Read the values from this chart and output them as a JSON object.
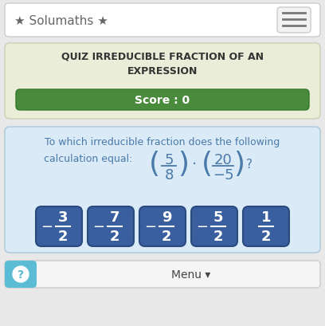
{
  "bg_color": "#e8e8e8",
  "header_bg": "#ffffff",
  "header_border": "#cccccc",
  "header_text": "★ Solumaths ★",
  "header_text_color": "#666666",
  "burger_color": "#777777",
  "quiz_bg": "#eaedd8",
  "quiz_border": "#d0d5b8",
  "quiz_title": "QUIZ IRREDUCIBLE FRACTION OF AN\nEXPRESSION",
  "quiz_title_color": "#333333",
  "score_bg": "#4a8a3c",
  "score_text": "Score : 0",
  "score_text_color": "#ffffff",
  "question_bg": "#daeaf7",
  "question_border": "#b0cde0",
  "question_text_line1": "To which irreducible fraction does the following",
  "question_text_color": "#4a7aaa",
  "question_text_line2": "calculation equal:",
  "fraction1_num": "5",
  "fraction1_den": "8",
  "fraction2_num": "20",
  "fraction2_den": "−5",
  "dot_symbol": "·",
  "question_mark": "?",
  "answers": [
    {
      "neg": true,
      "num": "3",
      "den": "2"
    },
    {
      "neg": true,
      "num": "7",
      "den": "2"
    },
    {
      "neg": true,
      "num": "9",
      "den": "2"
    },
    {
      "neg": true,
      "num": "5",
      "den": "2"
    },
    {
      "neg": false,
      "num": "1",
      "den": "2"
    }
  ],
  "answer_bg": "#3a5f9e",
  "answer_border": "#2a4a7e",
  "answer_text_color": "#ffffff",
  "menu_bg": "#f5f5f5",
  "menu_border": "#cccccc",
  "menu_help_bg": "#5bbcd4",
  "menu_text": "Menu ▾",
  "menu_text_color": "#444444"
}
